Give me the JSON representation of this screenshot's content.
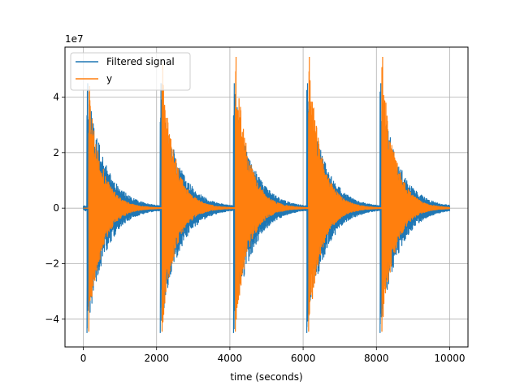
{
  "chart_data": {
    "type": "line",
    "title": "",
    "xlabel": "time (seconds)",
    "ylabel": "",
    "y_offset_text": "1e7",
    "xlim": [
      -500,
      10500
    ],
    "ylim": [
      -50000000,
      58000000
    ],
    "x_ticks": [
      0,
      2000,
      4000,
      6000,
      8000,
      10000
    ],
    "x_tick_labels": [
      "0",
      "2000",
      "4000",
      "6000",
      "8000",
      "10000"
    ],
    "y_ticks": [
      -40000000,
      -20000000,
      0,
      20000000,
      40000000
    ],
    "y_tick_labels": [
      "−4",
      "−2",
      "0",
      "2",
      "4"
    ],
    "grid": true,
    "legend_position": "top-left",
    "signal_range": [
      0,
      10000
    ],
    "series": [
      {
        "name": "Filtered signal",
        "color": "#1f77b4",
        "bursts": [
          {
            "start": 100,
            "peak_pos": 45000000,
            "peak_neg": -45000000
          },
          {
            "start": 2100,
            "peak_pos": 45000000,
            "peak_neg": -45000000
          },
          {
            "start": 4100,
            "peak_pos": 45000000,
            "peak_neg": -45000000
          },
          {
            "start": 6100,
            "peak_pos": 45000000,
            "peak_neg": -45000000
          },
          {
            "start": 8100,
            "peak_pos": 45000000,
            "peak_neg": -45000000
          }
        ],
        "decay_seconds": 500,
        "tail_amplitude": 1000000
      },
      {
        "name": "y",
        "color": "#ff7f0e",
        "bursts": [
          {
            "start": 150,
            "peak_pos": 44000000,
            "peak_neg": -44500000
          },
          {
            "start": 2150,
            "peak_pos": 52000000,
            "peak_neg": -44500000
          },
          {
            "start": 4150,
            "peak_pos": 54500000,
            "peak_neg": -44500000
          },
          {
            "start": 6150,
            "peak_pos": 54500000,
            "peak_neg": -44500000
          },
          {
            "start": 8150,
            "peak_pos": 54500000,
            "peak_neg": -44500000
          }
        ],
        "decay_seconds": 350,
        "tail_amplitude": 0
      }
    ]
  }
}
